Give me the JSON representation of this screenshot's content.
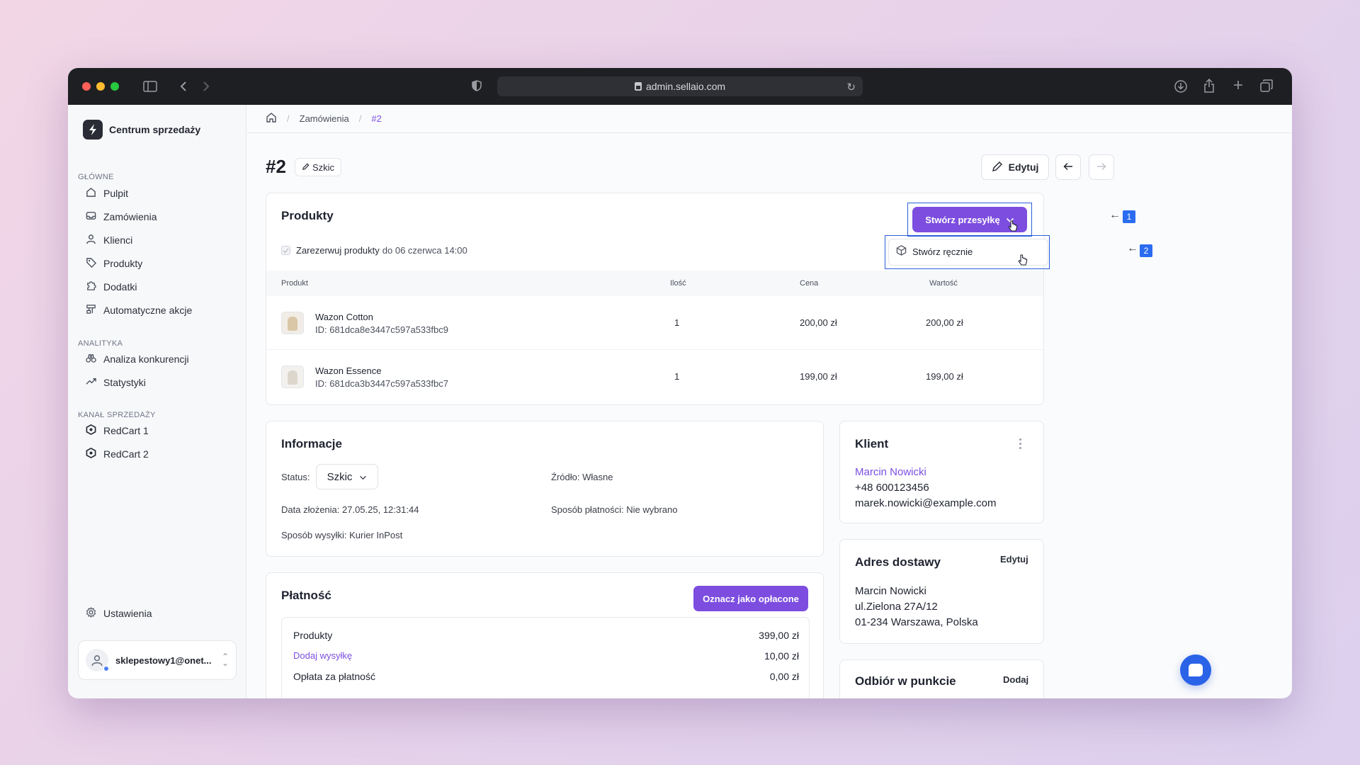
{
  "browser": {
    "url": "admin.sellaio.com",
    "traffic_colors": [
      "#fe5f57",
      "#febc2e",
      "#28c840"
    ]
  },
  "sidebar": {
    "brand": "Centrum sprzedaży",
    "sections": [
      {
        "label": "GŁÓWNE",
        "items": [
          {
            "label": "Pulpit",
            "icon": "home-icon"
          },
          {
            "label": "Zamówienia",
            "icon": "inbox-icon"
          },
          {
            "label": "Klienci",
            "icon": "user-icon"
          },
          {
            "label": "Produkty",
            "icon": "tag-icon"
          },
          {
            "label": "Dodatki",
            "icon": "puzzle-icon"
          },
          {
            "label": "Automatyczne akcje",
            "icon": "workflow-icon"
          }
        ]
      },
      {
        "label": "ANALITYKA",
        "items": [
          {
            "label": "Analiza konkurencji",
            "icon": "binoculars-icon"
          },
          {
            "label": "Statystyki",
            "icon": "trend-icon"
          }
        ]
      },
      {
        "label": "KANAŁ SPRZEDAŻY",
        "items": [
          {
            "label": "RedCart 1",
            "icon": "redcart-icon"
          },
          {
            "label": "RedCart 2",
            "icon": "redcart-icon"
          }
        ]
      }
    ],
    "settings_label": "Ustawienia",
    "user_email": "sklepestowy1@onet..."
  },
  "breadcrumb": {
    "items": [
      "Zamówienia",
      "#2"
    ]
  },
  "order": {
    "title": "#2",
    "status_chip": "Szkic",
    "edit_label": "Edytuj"
  },
  "products_card": {
    "title": "Produkty",
    "create_shipment_label": "Stwórz przesyłkę",
    "dropdown_item": "Stwórz ręcznie",
    "reserve_label": "Zarezerwuj produkty",
    "reserve_until": "do 06 czerwca 14:00",
    "columns": [
      "Produkt",
      "Ilość",
      "Cena",
      "Wartość"
    ],
    "rows": [
      {
        "name": "Wazon Cotton",
        "id": "ID: 681dca8e3447c597a533fbc9",
        "qty": "1",
        "price": "200,00 zł",
        "value": "200,00 zł"
      },
      {
        "name": "Wazon Essence",
        "id": "ID: 681dca3b3447c597a533fbc7",
        "qty": "1",
        "price": "199,00 zł",
        "value": "199,00 zł"
      }
    ]
  },
  "annotations": {
    "step1": "1",
    "step2": "2"
  },
  "info_card": {
    "title": "Informacje",
    "status_label": "Status:",
    "status_value": "Szkic",
    "source": "Źródło: Własne",
    "date": "Data złożenia: 27.05.25, 12:31:44",
    "payment_method": "Sposób płatności: Nie wybrano",
    "shipping_method": "Sposób wysyłki: Kurier InPost"
  },
  "payment_card": {
    "title": "Płatność",
    "mark_paid_label": "Oznacz jako opłacone",
    "rows": [
      {
        "label": "Produkty",
        "value": "399,00 zł"
      },
      {
        "label": "Dodaj wysyłkę",
        "value": "10,00 zł"
      },
      {
        "label": "Opłata za płatność",
        "value": "0,00 zł"
      }
    ]
  },
  "client_card": {
    "title": "Klient",
    "name": "Marcin Nowicki",
    "phone": "+48 600123456",
    "email": "marek.nowicki@example.com"
  },
  "address_card": {
    "title": "Adres dostawy",
    "edit_label": "Edytuj",
    "name": "Marcin Nowicki",
    "street": "ul.Zielona 27A/12",
    "city": "01-234 Warszawa, Polska"
  },
  "pickup_card": {
    "title": "Odbiór w punkcie",
    "add_label": "Dodaj"
  }
}
